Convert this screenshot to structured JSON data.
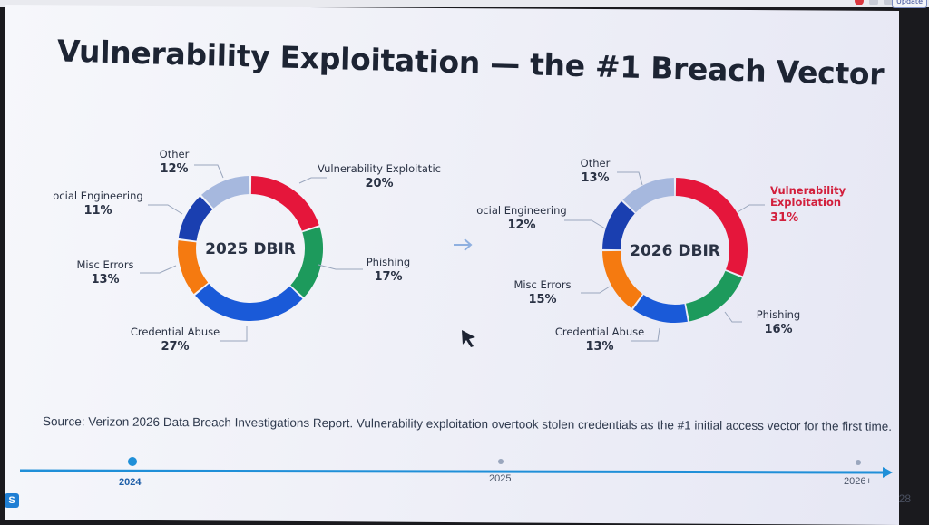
{
  "slide": {
    "title": "Vulnerability Exploitation — the #1 Breach Vector",
    "source": "Source: Verizon 2026 Data Breach Investigations Report. Vulnerability exploitation overtook stolen credentials as the #1 initial access vector for the first time.",
    "page_number": "28",
    "brand_badge": "S"
  },
  "browser": {
    "update_label": "Update"
  },
  "colors": {
    "vulnerability_exploitation": "#e5163b",
    "phishing": "#1d9a5c",
    "credential_abuse": "#1a5ad8",
    "misc_errors": "#f57a10",
    "social_engineering": "#1a3fb0",
    "other": "#a6b8de",
    "highlight_text": "#d21f3c",
    "timeline_line": "#1f8fd8"
  },
  "chart_data": [
    {
      "type": "pie",
      "donut": true,
      "center_label": "2025 DBIR",
      "slices": [
        {
          "label": "Vulnerability Exploitatic",
          "value": 20,
          "pct_text": "20%",
          "color": "#e5163b"
        },
        {
          "label": "Phishing",
          "value": 17,
          "pct_text": "17%",
          "color": "#1d9a5c"
        },
        {
          "label": "Credential Abuse",
          "value": 27,
          "pct_text": "27%",
          "color": "#1a5ad8"
        },
        {
          "label": "Misc Errors",
          "value": 13,
          "pct_text": "13%",
          "color": "#f57a10"
        },
        {
          "label": "ocial Engineering",
          "value": 11,
          "pct_text": "11%",
          "color": "#1a3fb0"
        },
        {
          "label": "Other",
          "value": 12,
          "pct_text": "12%",
          "color": "#a6b8de"
        }
      ]
    },
    {
      "type": "pie",
      "donut": true,
      "center_label": "2026 DBIR",
      "slices": [
        {
          "label": "Vulnerability Exploitation",
          "value": 31,
          "pct_text": "31%",
          "color": "#e5163b",
          "highlight": true
        },
        {
          "label": "Phishing",
          "value": 16,
          "pct_text": "16%",
          "color": "#1d9a5c"
        },
        {
          "label": "Credential Abuse",
          "value": 13,
          "pct_text": "13%",
          "color": "#1a5ad8"
        },
        {
          "label": "Misc Errors",
          "value": 15,
          "pct_text": "15%",
          "color": "#f57a10"
        },
        {
          "label": "ocial Engineering",
          "value": 12,
          "pct_text": "12%",
          "color": "#1a3fb0"
        },
        {
          "label": "Other",
          "value": 13,
          "pct_text": "13%",
          "color": "#a6b8de"
        }
      ]
    }
  ],
  "timeline": {
    "items": [
      {
        "label": "2024",
        "active": true
      },
      {
        "label": "2025",
        "active": false
      },
      {
        "label": "2026+",
        "active": false
      }
    ]
  }
}
